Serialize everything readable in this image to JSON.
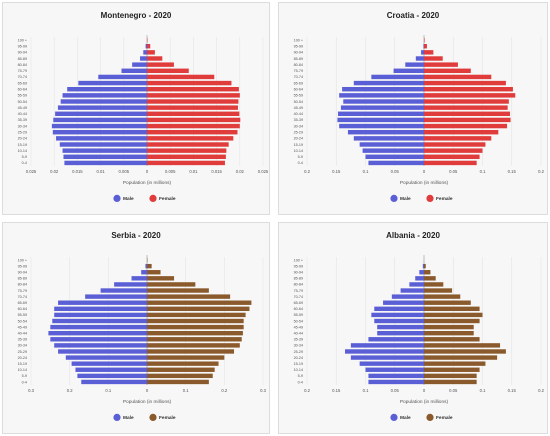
{
  "age_groups": [
    "100 +",
    "95-99",
    "90-94",
    "85-89",
    "80-84",
    "75-79",
    "70-74",
    "65-69",
    "60-64",
    "55-59",
    "50-54",
    "45-49",
    "40-44",
    "35-39",
    "30-34",
    "25-29",
    "20-24",
    "15-19",
    "10-14",
    "5-9",
    "0-4"
  ],
  "colors": {
    "male": "#5b5fd6",
    "female_red": "#e03c3c",
    "female_brown": "#8a5a2c",
    "grid": "#e4e4e4"
  },
  "chart_data": [
    {
      "type": "bar",
      "title": "Montenegro - 2020",
      "xlabel": "Population (in millions)",
      "female_color": "female_red",
      "xlim": [
        -0.025,
        0.025
      ],
      "ticks": [
        -0.025,
        -0.02,
        -0.015,
        -0.01,
        -0.005,
        0,
        0.005,
        0.01,
        0.015,
        0.02,
        0.025
      ],
      "tick_labels": [
        "0.025",
        "0.02",
        "0.015",
        "0.01",
        "0.005",
        "0",
        "0.005",
        "0.01",
        "0.015",
        "0.02",
        "0.025"
      ],
      "legend": {
        "male": "Male",
        "female": "Female"
      },
      "series": [
        {
          "name": "Male",
          "values": [
            0.0,
            0.0003,
            0.0008,
            0.0015,
            0.0032,
            0.0055,
            0.0105,
            0.0148,
            0.0172,
            0.0182,
            0.0186,
            0.0192,
            0.0198,
            0.0202,
            0.0205,
            0.0203,
            0.0196,
            0.0188,
            0.0182,
            0.018,
            0.0178
          ]
        },
        {
          "name": "Female",
          "values": [
            0.0001,
            0.0007,
            0.0017,
            0.0033,
            0.0058,
            0.009,
            0.0145,
            0.0182,
            0.0198,
            0.02,
            0.0197,
            0.0196,
            0.0199,
            0.0201,
            0.02,
            0.0195,
            0.0186,
            0.0176,
            0.0171,
            0.017,
            0.0168
          ]
        }
      ]
    },
    {
      "type": "bar",
      "title": "Croatia - 2020",
      "xlabel": "Population (in millions)",
      "female_color": "female_red",
      "xlim": [
        -0.2,
        0.2
      ],
      "ticks": [
        -0.2,
        -0.15,
        -0.1,
        -0.05,
        0,
        0.05,
        0.1,
        0.15,
        0.2
      ],
      "tick_labels": [
        "0.2",
        "0.15",
        "0.1",
        "0.05",
        "0",
        "0.05",
        "0.1",
        "0.15",
        "0.2"
      ],
      "legend": {
        "male": "Male",
        "female": "Female"
      },
      "series": [
        {
          "name": "Male",
          "values": [
            0.0,
            0.001,
            0.005,
            0.014,
            0.032,
            0.052,
            0.09,
            0.12,
            0.14,
            0.145,
            0.138,
            0.142,
            0.147,
            0.148,
            0.145,
            0.13,
            0.12,
            0.11,
            0.105,
            0.1,
            0.095
          ]
        },
        {
          "name": "Female",
          "values": [
            0.001,
            0.005,
            0.016,
            0.032,
            0.058,
            0.08,
            0.115,
            0.14,
            0.152,
            0.156,
            0.145,
            0.143,
            0.147,
            0.148,
            0.142,
            0.127,
            0.115,
            0.105,
            0.1,
            0.095,
            0.09
          ]
        }
      ]
    },
    {
      "type": "bar",
      "title": "Serbia - 2020",
      "xlabel": "Population (in millions)",
      "female_color": "female_brown",
      "xlim": [
        -0.3,
        0.3
      ],
      "ticks": [
        -0.3,
        -0.2,
        -0.1,
        0,
        0.1,
        0.2,
        0.3
      ],
      "tick_labels": [
        "0.3",
        "0.2",
        "0.1",
        "0",
        "0.1",
        "0.2",
        "0.3"
      ],
      "legend": {
        "male": "Male",
        "female": "Female"
      },
      "series": [
        {
          "name": "Male",
          "values": [
            0.0,
            0.004,
            0.015,
            0.04,
            0.085,
            0.12,
            0.16,
            0.23,
            0.24,
            0.24,
            0.245,
            0.25,
            0.255,
            0.25,
            0.24,
            0.23,
            0.21,
            0.195,
            0.185,
            0.18,
            0.17
          ]
        },
        {
          "name": "Female",
          "values": [
            0.001,
            0.012,
            0.035,
            0.07,
            0.125,
            0.16,
            0.215,
            0.27,
            0.265,
            0.255,
            0.25,
            0.25,
            0.248,
            0.245,
            0.24,
            0.225,
            0.2,
            0.185,
            0.175,
            0.17,
            0.16
          ]
        }
      ]
    },
    {
      "type": "bar",
      "title": "Albania - 2020",
      "xlabel": "Population (in millions)",
      "female_color": "female_brown",
      "xlim": [
        -0.2,
        0.2
      ],
      "ticks": [
        -0.2,
        -0.15,
        -0.1,
        -0.05,
        0,
        0.05,
        0.1,
        0.15,
        0.2
      ],
      "tick_labels": [
        "0.2",
        "0.15",
        "0.1",
        "0.05",
        "0",
        "0.05",
        "0.1",
        "0.15",
        "0.2"
      ],
      "legend": {
        "male": "Male",
        "female": "Female"
      },
      "series": [
        {
          "name": "Male",
          "values": [
            0.0,
            0.002,
            0.008,
            0.015,
            0.025,
            0.04,
            0.055,
            0.07,
            0.085,
            0.09,
            0.085,
            0.08,
            0.08,
            0.095,
            0.125,
            0.135,
            0.125,
            0.11,
            0.1,
            0.095,
            0.095
          ]
        },
        {
          "name": "Female",
          "values": [
            0.0,
            0.003,
            0.011,
            0.02,
            0.033,
            0.048,
            0.062,
            0.08,
            0.095,
            0.1,
            0.095,
            0.085,
            0.085,
            0.095,
            0.13,
            0.14,
            0.125,
            0.105,
            0.095,
            0.09,
            0.09
          ]
        }
      ]
    }
  ]
}
